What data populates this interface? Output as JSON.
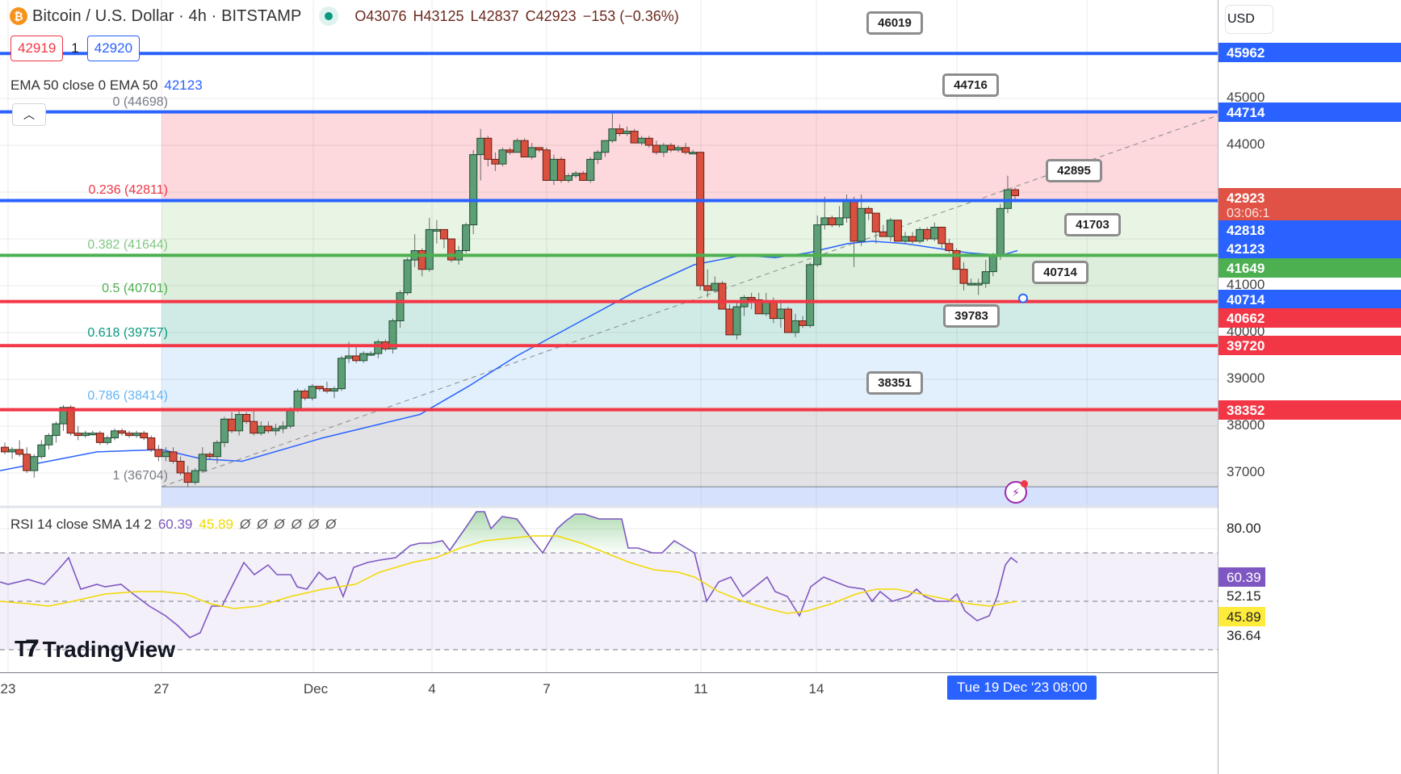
{
  "header": {
    "symbol_title": "Bitcoin / U.S. Dollar · 4h · BITSTAMP",
    "symbol_icon": "bitcoin-icon",
    "ohlc": {
      "open": "O43076",
      "high": "H43125",
      "low": "L42837",
      "close": "C42923",
      "change": "−153 (−0.36%)"
    },
    "bid": "42919",
    "spread": "1",
    "ask": "42920"
  },
  "indicators": {
    "ema": {
      "label": "EMA 50 close 0 EMA 50",
      "value": "42123"
    },
    "rsi": {
      "label": "RSI 14 close SMA 14 2",
      "rsi_value": "60.39",
      "sma_value": "45.89",
      "na_values": [
        "Ø",
        "Ø",
        "Ø",
        "Ø",
        "Ø",
        "Ø"
      ]
    }
  },
  "price_axis": {
    "currency": "USD",
    "ticks": [
      "45000",
      "44000",
      "41000",
      "40000",
      "39000",
      "38000",
      "37000"
    ],
    "tags": [
      {
        "value": "45962",
        "color": "#2962ff"
      },
      {
        "value": "44714",
        "color": "#2962ff"
      },
      {
        "value": "42923",
        "sub": "03:06:1",
        "color": "#e05245"
      },
      {
        "value": "42818",
        "color": "#2962ff"
      },
      {
        "value": "42123",
        "color": "#2962ff"
      },
      {
        "value": "41649",
        "color": "#4caf50"
      },
      {
        "value": "40714",
        "color": "#2962ff"
      },
      {
        "value": "40662",
        "color": "#f23645"
      },
      {
        "value": "39720",
        "color": "#f23645"
      },
      {
        "value": "38352",
        "color": "#f23645"
      }
    ],
    "rsi_ticks": [
      "80.00",
      "52.15",
      "36.64"
    ],
    "rsi_tags": [
      {
        "value": "60.39",
        "color": "#7e57c2"
      },
      {
        "value": "45.89",
        "color": "#ffeb3b"
      }
    ]
  },
  "time_axis": {
    "labels": [
      "23",
      "27",
      "Dec",
      "4",
      "7",
      "11",
      "14"
    ],
    "crosshair_label": "Tue 19 Dec '23   08:00"
  },
  "fib_levels": [
    {
      "label": "0 (44698)",
      "color": "#787b86"
    },
    {
      "label": "0.236 (42811)",
      "color": "#f23645"
    },
    {
      "label": "0.382 (41644)",
      "color": "#81c784"
    },
    {
      "label": "0.5 (40701)",
      "color": "#4caf50"
    },
    {
      "label": "0.618 (39757)",
      "color": "#089981"
    },
    {
      "label": "0.786 (38414)",
      "color": "#64b5f6"
    },
    {
      "label": "1 (36704)",
      "color": "#787b86"
    }
  ],
  "callouts": [
    "46019",
    "44716",
    "42895",
    "41703",
    "40714",
    "39783",
    "38351"
  ],
  "branding": {
    "logo_text": "TradingView"
  },
  "chart_data": {
    "type": "candlestick",
    "title": "Bitcoin / U.S. Dollar · 4h · BITSTAMP",
    "xlabel": "",
    "ylabel": "USD",
    "ylim": [
      36300,
      46400
    ],
    "x_ticks": [
      "23",
      "27",
      "Dec",
      "4",
      "7",
      "11",
      "14"
    ],
    "horizontal_lines": [
      {
        "price": 45962,
        "color": "#2962ff"
      },
      {
        "price": 44714,
        "color": "#2962ff"
      },
      {
        "price": 42818,
        "color": "#2962ff"
      },
      {
        "price": 41649,
        "color": "#4caf50"
      },
      {
        "price": 40662,
        "color": "#f23645"
      },
      {
        "price": 39720,
        "color": "#f23645"
      },
      {
        "price": 38352,
        "color": "#f23645"
      }
    ],
    "fibonacci": {
      "start_price": 36704,
      "end_price": 44698,
      "levels": [
        0,
        0.236,
        0.382,
        0.5,
        0.618,
        0.786,
        1
      ],
      "prices": [
        44698,
        42811,
        41644,
        40701,
        39757,
        38414,
        36704
      ]
    },
    "last_price": 42923,
    "candles_ohlc": [
      [
        37550,
        37650,
        37400,
        37450
      ],
      [
        37450,
        37550,
        37300,
        37500
      ],
      [
        37500,
        37700,
        37350,
        37400
      ],
      [
        37400,
        37550,
        37000,
        37050
      ],
      [
        37050,
        37400,
        36900,
        37350
      ],
      [
        37350,
        37700,
        37300,
        37600
      ],
      [
        37600,
        37850,
        37500,
        37800
      ],
      [
        37800,
        38100,
        37650,
        38050
      ],
      [
        38050,
        38450,
        37900,
        38400
      ],
      [
        38400,
        38450,
        37800,
        37850
      ],
      [
        37850,
        38000,
        37700,
        37800
      ],
      [
        37800,
        37900,
        37750,
        37850
      ],
      [
        37850,
        37900,
        37800,
        37850
      ],
      [
        37850,
        37900,
        37600,
        37650
      ],
      [
        37650,
        37800,
        37600,
        37750
      ],
      [
        37750,
        37950,
        37700,
        37900
      ],
      [
        37900,
        37950,
        37800,
        37850
      ],
      [
        37850,
        37900,
        37750,
        37800
      ],
      [
        37800,
        37900,
        37750,
        37850
      ],
      [
        37850,
        37900,
        37700,
        37750
      ],
      [
        37750,
        37800,
        37450,
        37500
      ],
      [
        37500,
        37600,
        37250,
        37350
      ],
      [
        37350,
        37550,
        37250,
        37450
      ],
      [
        37450,
        37550,
        37200,
        37250
      ],
      [
        37250,
        37350,
        36950,
        37000
      ],
      [
        37000,
        37150,
        36700,
        36800
      ],
      [
        36800,
        37100,
        36750,
        37050
      ],
      [
        37050,
        37550,
        37000,
        37400
      ],
      [
        37400,
        37450,
        37300,
        37350
      ],
      [
        37350,
        37700,
        37200,
        37650
      ],
      [
        37650,
        38200,
        37550,
        38150
      ],
      [
        38150,
        38300,
        37850,
        37900
      ],
      [
        37900,
        38350,
        37800,
        38250
      ],
      [
        38250,
        38300,
        38050,
        38100
      ],
      [
        38100,
        38350,
        37800,
        37850
      ],
      [
        37850,
        38100,
        37800,
        38000
      ],
      [
        38000,
        38100,
        37850,
        37900
      ],
      [
        37900,
        38050,
        37800,
        37950
      ],
      [
        37950,
        38100,
        37850,
        38000
      ],
      [
        38000,
        38400,
        37950,
        38350
      ],
      [
        38350,
        38800,
        38300,
        38750
      ],
      [
        38750,
        38800,
        38550,
        38600
      ],
      [
        38600,
        38900,
        38550,
        38850
      ],
      [
        38850,
        38850,
        38750,
        38800
      ],
      [
        38800,
        38950,
        38700,
        38750
      ],
      [
        38750,
        38850,
        38600,
        38800
      ],
      [
        38800,
        39500,
        38750,
        39450
      ],
      [
        39450,
        39800,
        39350,
        39500
      ],
      [
        39500,
        39700,
        39350,
        39400
      ],
      [
        39400,
        39600,
        39350,
        39550
      ],
      [
        39550,
        39600,
        39500,
        39550
      ],
      [
        39550,
        39850,
        39450,
        39800
      ],
      [
        39800,
        39850,
        39600,
        39650
      ],
      [
        39650,
        40300,
        39550,
        40250
      ],
      [
        40250,
        40900,
        40100,
        40850
      ],
      [
        40850,
        41600,
        40800,
        41550
      ],
      [
        41550,
        42100,
        41400,
        41750
      ],
      [
        41750,
        41800,
        41200,
        41350
      ],
      [
        41350,
        42450,
        41300,
        42200
      ],
      [
        42200,
        42400,
        41900,
        42200
      ],
      [
        42200,
        42200,
        41800,
        42000
      ],
      [
        42000,
        42000,
        41500,
        41550
      ],
      [
        41550,
        41850,
        41450,
        41750
      ],
      [
        41750,
        42350,
        41700,
        42300
      ],
      [
        42300,
        43900,
        42100,
        43800
      ],
      [
        43800,
        44350,
        43250,
        44150
      ],
      [
        44150,
        44200,
        43550,
        43700
      ],
      [
        43700,
        43850,
        43450,
        43600
      ],
      [
        43600,
        43950,
        43550,
        43900
      ],
      [
        43900,
        43950,
        43800,
        43850
      ],
      [
        43850,
        44150,
        43850,
        44100
      ],
      [
        44100,
        44150,
        43750,
        43750
      ],
      [
        43750,
        44050,
        43700,
        43950
      ],
      [
        43950,
        43950,
        43850,
        43900
      ],
      [
        43900,
        43950,
        43250,
        43250
      ],
      [
        43250,
        43800,
        43150,
        43700
      ],
      [
        43700,
        43750,
        43200,
        43250
      ],
      [
        43250,
        43400,
        43200,
        43350
      ],
      [
        43350,
        43450,
        43300,
        43400
      ],
      [
        43400,
        43450,
        43250,
        43250
      ],
      [
        43250,
        43750,
        43200,
        43700
      ],
      [
        43700,
        43900,
        43600,
        43850
      ],
      [
        43850,
        44100,
        43750,
        44100
      ],
      [
        44100,
        44700,
        44050,
        44350
      ],
      [
        44350,
        44450,
        44200,
        44250
      ],
      [
        44250,
        44400,
        44200,
        44300
      ],
      [
        44300,
        44350,
        44050,
        44050
      ],
      [
        44050,
        44200,
        44000,
        44150
      ],
      [
        44150,
        44200,
        43950,
        44000
      ],
      [
        44000,
        44100,
        43800,
        43850
      ],
      [
        43850,
        44050,
        43750,
        44000
      ],
      [
        44000,
        44050,
        43850,
        43900
      ],
      [
        43900,
        44000,
        43850,
        43950
      ],
      [
        43950,
        44050,
        43800,
        43850
      ],
      [
        43850,
        43900,
        43850,
        43850
      ],
      [
        43850,
        43850,
        40900,
        41000
      ],
      [
        41000,
        41350,
        40750,
        40900
      ],
      [
        40900,
        41200,
        40850,
        41050
      ],
      [
        41050,
        41100,
        40500,
        40500
      ],
      [
        40500,
        40600,
        39950,
        39950
      ],
      [
        39950,
        40650,
        39850,
        40550
      ],
      [
        40550,
        40800,
        40350,
        40750
      ],
      [
        40750,
        40850,
        40500,
        40700
      ],
      [
        40700,
        40850,
        40400,
        40400
      ],
      [
        40400,
        40850,
        40350,
        40650
      ],
      [
        40650,
        40750,
        40200,
        40300
      ],
      [
        40300,
        40700,
        40100,
        40500
      ],
      [
        40500,
        40550,
        40000,
        40000
      ],
      [
        40000,
        40400,
        39900,
        40250
      ],
      [
        40250,
        40350,
        40100,
        40150
      ],
      [
        40150,
        41500,
        40100,
        41450
      ],
      [
        41450,
        42500,
        41400,
        42300
      ],
      [
        42300,
        42900,
        42200,
        42450
      ],
      [
        42450,
        42500,
        42250,
        42300
      ],
      [
        42300,
        42700,
        42250,
        42450
      ],
      [
        42450,
        42950,
        42350,
        42800
      ],
      [
        42800,
        42900,
        41400,
        41950
      ],
      [
        41950,
        42950,
        41850,
        42650
      ],
      [
        42650,
        42700,
        42400,
        42550
      ],
      [
        42550,
        42550,
        41900,
        42150
      ],
      [
        42150,
        42300,
        42050,
        42050
      ],
      [
        42050,
        42450,
        41950,
        42400
      ],
      [
        42400,
        42400,
        41950,
        41950
      ],
      [
        41950,
        42150,
        41900,
        42050
      ],
      [
        42050,
        42150,
        41900,
        41950
      ],
      [
        41950,
        42250,
        41900,
        42200
      ],
      [
        42200,
        42250,
        41950,
        42000
      ],
      [
        42000,
        42350,
        41950,
        42250
      ],
      [
        42250,
        42250,
        41800,
        41900
      ],
      [
        41900,
        42000,
        41700,
        41750
      ],
      [
        41750,
        41800,
        41350,
        41350
      ],
      [
        41350,
        41500,
        40900,
        41050
      ],
      [
        41050,
        41150,
        41000,
        41050
      ],
      [
        41050,
        41150,
        40800,
        41050
      ],
      [
        41050,
        41550,
        40950,
        41300
      ],
      [
        41300,
        41700,
        41200,
        41650
      ],
      [
        41650,
        42750,
        41550,
        42650
      ],
      [
        42650,
        43350,
        42550,
        43050
      ],
      [
        43050,
        43100,
        42850,
        42923
      ]
    ],
    "ema50": [
      [
        0,
        37050
      ],
      [
        60,
        37250
      ],
      [
        120,
        37450
      ],
      [
        200,
        37500
      ],
      [
        250,
        37300
      ],
      [
        300,
        37250
      ],
      [
        400,
        37750
      ],
      [
        460,
        38000
      ],
      [
        520,
        38250
      ],
      [
        580,
        38850
      ],
      [
        640,
        39500
      ],
      [
        720,
        40250
      ],
      [
        790,
        40900
      ],
      [
        860,
        41450
      ],
      [
        920,
        41650
      ],
      [
        960,
        41600
      ],
      [
        1000,
        41700
      ],
      [
        1050,
        41900
      ],
      [
        1080,
        41950
      ],
      [
        1120,
        41900
      ],
      [
        1160,
        41800
      ],
      [
        1200,
        41700
      ],
      [
        1240,
        41650
      ],
      [
        1260,
        41750
      ]
    ],
    "rsi": {
      "overbought": 70,
      "oversold": 30,
      "mid": 50,
      "rsi_last": 60.39,
      "sma_last": 45.89,
      "upper_band": 52.15,
      "lower_band": 36.64
    }
  }
}
